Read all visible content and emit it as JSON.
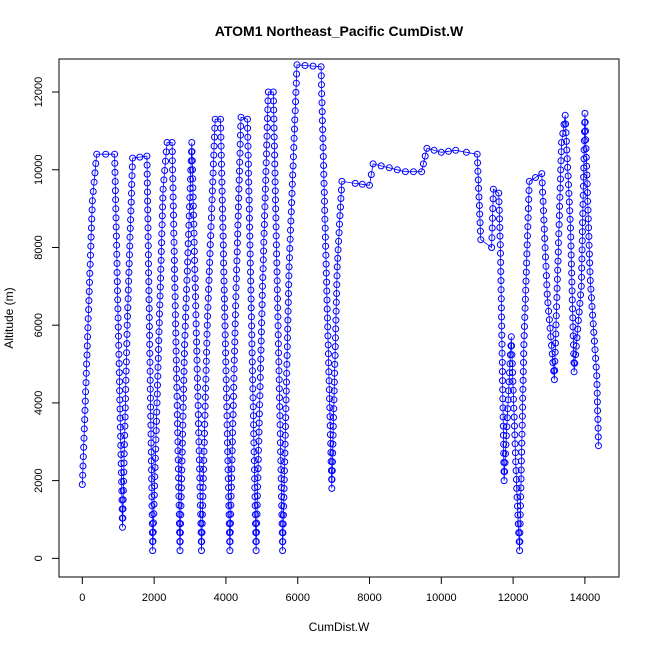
{
  "chart_data": {
    "type": "scatter",
    "title": "ATOM1 Northeast_Pacific CumDist.W",
    "xlabel": "CumDist.W",
    "ylabel": "Altitude (m)",
    "xlim": [
      -650,
      14950
    ],
    "ylim": [
      -480,
      12850
    ],
    "xticks": [
      0,
      2000,
      4000,
      6000,
      8000,
      10000,
      12000,
      14000
    ],
    "xtick_labels": [
      "0",
      "2000",
      "4000",
      "6000",
      "8000",
      "10000",
      "12000",
      "14000"
    ],
    "yticks": [
      0,
      2000,
      4000,
      6000,
      8000,
      10000,
      12000
    ],
    "ytick_labels": [
      "0",
      "2000",
      "4000",
      "6000",
      "8000",
      "10000",
      "12000"
    ],
    "grid": false,
    "marker": "open-circle",
    "line_connected": true,
    "color": "#0000ff",
    "vertices": [
      [
        0,
        1900
      ],
      [
        120,
        5000
      ],
      [
        280,
        9200
      ],
      [
        400,
        10400
      ],
      [
        900,
        10400
      ],
      [
        1120,
        800
      ],
      [
        1250,
        6000
      ],
      [
        1400,
        10300
      ],
      [
        1800,
        10350
      ],
      [
        1960,
        200
      ],
      [
        2080,
        4000
      ],
      [
        2250,
        9500
      ],
      [
        2360,
        10700
      ],
      [
        2500,
        10700
      ],
      [
        2720,
        200
      ],
      [
        2850,
        5500
      ],
      [
        3050,
        10700
      ],
      [
        3320,
        200
      ],
      [
        3480,
        6000
      ],
      [
        3700,
        11300
      ],
      [
        3850,
        11300
      ],
      [
        4110,
        200
      ],
      [
        4270,
        6500
      ],
      [
        4420,
        11350
      ],
      [
        4600,
        11300
      ],
      [
        4840,
        200
      ],
      [
        5020,
        7000
      ],
      [
        5180,
        12000
      ],
      [
        5320,
        12000
      ],
      [
        5580,
        200
      ],
      [
        5760,
        7500
      ],
      [
        5980,
        12700
      ],
      [
        6650,
        12650
      ],
      [
        6950,
        1800
      ],
      [
        7100,
        7500
      ],
      [
        7230,
        9700
      ],
      [
        7600,
        9650
      ],
      [
        8000,
        9600
      ],
      [
        8100,
        10150
      ],
      [
        8550,
        10050
      ],
      [
        9000,
        9950
      ],
      [
        9450,
        9950
      ],
      [
        9600,
        10550
      ],
      [
        10000,
        10450
      ],
      [
        10400,
        10500
      ],
      [
        11000,
        10400
      ],
      [
        11100,
        8200
      ],
      [
        11400,
        8000
      ],
      [
        11450,
        9500
      ],
      [
        11600,
        9400
      ],
      [
        11650,
        7850
      ],
      [
        11750,
        2000
      ],
      [
        11950,
        5700
      ],
      [
        12100,
        1800
      ],
      [
        12180,
        200
      ],
      [
        12300,
        5500
      ],
      [
        12450,
        9700
      ],
      [
        12800,
        9900
      ],
      [
        12950,
        6800
      ],
      [
        13150,
        4600
      ],
      [
        13350,
        10700
      ],
      [
        13450,
        11400
      ],
      [
        13600,
        8500
      ],
      [
        13700,
        4800
      ],
      [
        13900,
        7000
      ],
      [
        14000,
        11450
      ],
      [
        14150,
        7150
      ],
      [
        14330,
        4700
      ],
      [
        14380,
        2900
      ]
    ],
    "note_points_per_segment_scale": 1
  }
}
